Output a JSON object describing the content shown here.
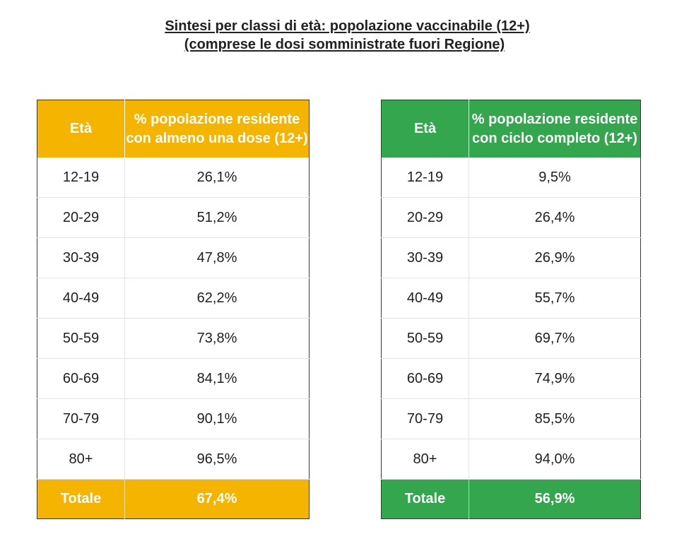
{
  "title": {
    "line1": "Sintesi per classi di età: popolazione vaccinabile (12+)",
    "line2": "(comprese le dosi somministrate fuori Regione)"
  },
  "tables": [
    {
      "header_age": "Età",
      "header_value": "% popolazione residente con almeno una dose (12+)",
      "header_color": "#f5b400",
      "rows": [
        {
          "age": "12-19",
          "value": "26,1%"
        },
        {
          "age": "20-29",
          "value": "51,2%"
        },
        {
          "age": "30-39",
          "value": "47,8%"
        },
        {
          "age": "40-49",
          "value": "62,2%"
        },
        {
          "age": "50-59",
          "value": "73,8%"
        },
        {
          "age": "60-69",
          "value": "84,1%"
        },
        {
          "age": "70-79",
          "value": "90,1%"
        },
        {
          "age": "80+",
          "value": "96,5%"
        }
      ],
      "total_label": "Totale",
      "total_value": "67,4%"
    },
    {
      "header_age": "Età",
      "header_value": "% popolazione residente con ciclo completo (12+)",
      "header_color": "#33a64e",
      "rows": [
        {
          "age": "12-19",
          "value": "9,5%"
        },
        {
          "age": "20-29",
          "value": "26,4%"
        },
        {
          "age": "30-39",
          "value": "26,9%"
        },
        {
          "age": "40-49",
          "value": "55,7%"
        },
        {
          "age": "50-59",
          "value": "69,7%"
        },
        {
          "age": "60-69",
          "value": "74,9%"
        },
        {
          "age": "70-79",
          "value": "85,5%"
        },
        {
          "age": "80+",
          "value": "94,0%"
        }
      ],
      "total_label": "Totale",
      "total_value": "56,9%"
    }
  ]
}
